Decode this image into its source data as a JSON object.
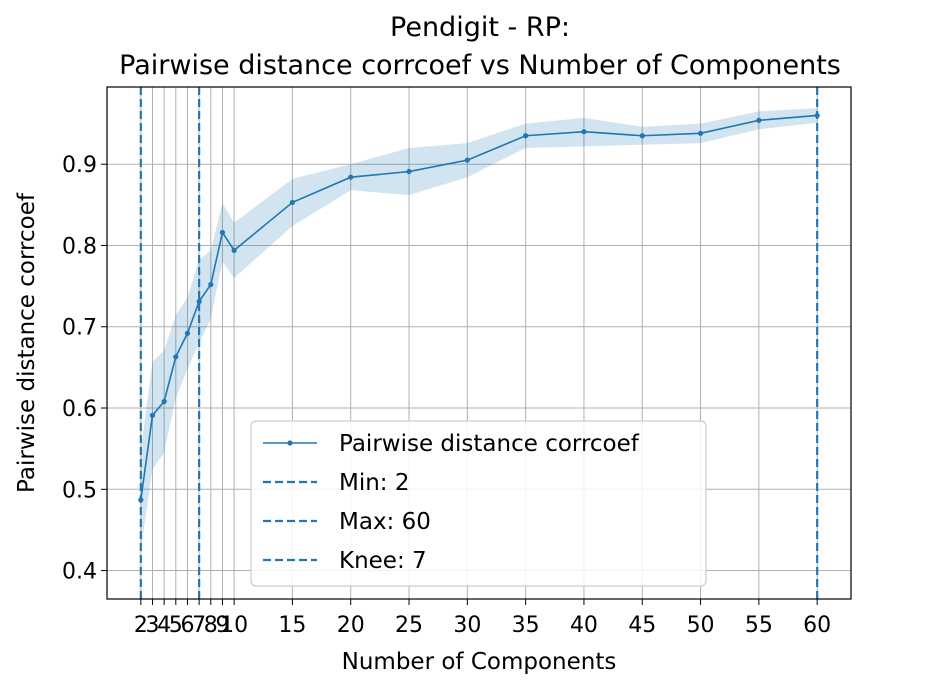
{
  "chart_data": {
    "type": "line",
    "title_line1": "Pendigit - RP:",
    "title_line2": "Pairwise distance corrcoef vs Number of Components",
    "xlabel": "Number of Components",
    "ylabel": "Pairwise distance corrcoef",
    "xlim": [
      -0.9,
      62.9
    ],
    "ylim": [
      0.365,
      0.995
    ],
    "xticks": [
      2,
      3,
      4,
      5,
      6,
      7,
      8,
      9,
      10,
      15,
      20,
      25,
      30,
      35,
      40,
      45,
      50,
      55,
      60
    ],
    "xtick_labels": [
      "2",
      "3",
      "4",
      "5",
      "6",
      "7",
      "8",
      "9",
      "10",
      "15",
      "20",
      "25",
      "30",
      "35",
      "40",
      "45",
      "50",
      "55",
      "60"
    ],
    "yticks": [
      0.4,
      0.5,
      0.6,
      0.7,
      0.8,
      0.9
    ],
    "ytick_labels": [
      "0.4",
      "0.5",
      "0.6",
      "0.7",
      "0.8",
      "0.9"
    ],
    "grid": true,
    "series": [
      {
        "name": "Pairwise distance corrcoef",
        "color": "#1f77b4",
        "x": [
          2,
          3,
          4,
          5,
          6,
          7,
          8,
          9,
          10,
          15,
          20,
          25,
          30,
          35,
          40,
          45,
          50,
          55,
          60
        ],
        "y": [
          0.487,
          0.591,
          0.608,
          0.663,
          0.692,
          0.731,
          0.752,
          0.816,
          0.794,
          0.853,
          0.884,
          0.891,
          0.905,
          0.935,
          0.94,
          0.935,
          0.938,
          0.954,
          0.96
        ],
        "lower": [
          0.425,
          0.525,
          0.545,
          0.612,
          0.648,
          0.68,
          0.71,
          0.78,
          0.76,
          0.824,
          0.868,
          0.862,
          0.884,
          0.92,
          0.922,
          0.924,
          0.926,
          0.943,
          0.951
        ],
        "upper": [
          0.548,
          0.657,
          0.671,
          0.714,
          0.736,
          0.782,
          0.794,
          0.852,
          0.828,
          0.882,
          0.9,
          0.92,
          0.926,
          0.95,
          0.957,
          0.946,
          0.95,
          0.965,
          0.969
        ]
      }
    ],
    "vlines": [
      {
        "x": 2,
        "color": "#1f77b4",
        "label": "Min: 2"
      },
      {
        "x": 60,
        "color": "#1f77b4",
        "label": "Max: 60"
      },
      {
        "x": 7,
        "color": "#1f77b4",
        "label": "Knee: 7"
      }
    ],
    "legend_position": "lower-center"
  }
}
